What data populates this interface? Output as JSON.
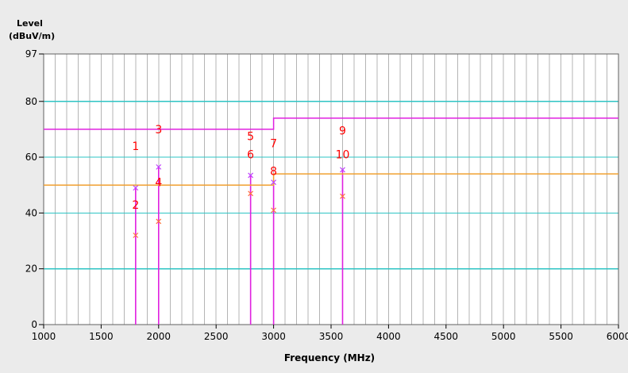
{
  "chart_data": {
    "type": "line",
    "ylabel": "Level",
    "yunit": "(dBuV/m)",
    "xlabel": "Frequency (MHz)",
    "xlim": [
      1000,
      6000
    ],
    "ylim": [
      0,
      97
    ],
    "x_ticks": [
      1000,
      1500,
      2000,
      2500,
      3000,
      3500,
      4000,
      4500,
      5000,
      5500,
      6000
    ],
    "x_tick_labels": [
      "1000",
      "1500",
      "2000",
      "2500",
      "3000",
      "3500",
      "4000",
      "4500",
      "5000",
      "5500",
      "6000"
    ],
    "y_ticks": [
      0,
      20,
      40,
      60,
      80,
      97
    ],
    "y_tick_labels": [
      "0",
      "20",
      "40",
      "60",
      "80",
      "97"
    ],
    "grid": true,
    "colors": {
      "plot_bg": "#ffffff",
      "minor_grid": "#b4b4b4",
      "major_grid": "#2ec4c4",
      "peak_limit": "#e020e0",
      "avg_limit": "#f0a030",
      "peak_marker": "#c040ff",
      "avg_marker": "#ff7040",
      "marker_label": "#ff0000",
      "vertical_line": "#e020e0"
    },
    "limit_lines": [
      {
        "points": [
          [
            1000,
            70
          ],
          [
            3000,
            70
          ],
          [
            3000,
            74
          ],
          [
            6000,
            74
          ]
        ],
        "color": "#e020e0"
      },
      {
        "points": [
          [
            1000,
            50
          ],
          [
            3000,
            50
          ],
          [
            3000,
            54
          ],
          [
            6000,
            54
          ]
        ],
        "color": "#f0a030"
      }
    ],
    "vertical_lines": [
      1800,
      2000,
      2800,
      3000,
      3600
    ],
    "peak_points": [
      [
        1800,
        49
      ],
      [
        2000,
        56.5
      ],
      [
        2800,
        53.5
      ],
      [
        3000,
        51
      ],
      [
        3600,
        55.5
      ]
    ],
    "avg_points": [
      [
        1800,
        32
      ],
      [
        2000,
        37
      ],
      [
        2800,
        47
      ],
      [
        3000,
        41
      ],
      [
        3600,
        46
      ]
    ],
    "markers": [
      {
        "label": "1",
        "x": 1800,
        "y": 64
      },
      {
        "label": "2",
        "x": 1800,
        "y": 43
      },
      {
        "label": "3",
        "x": 2000,
        "y": 70
      },
      {
        "label": "4",
        "x": 2000,
        "y": 51
      },
      {
        "label": "5",
        "x": 2800,
        "y": 67.5
      },
      {
        "label": "6",
        "x": 2800,
        "y": 61
      },
      {
        "label": "7",
        "x": 3000,
        "y": 65
      },
      {
        "label": "8",
        "x": 3000,
        "y": 55
      },
      {
        "label": "9",
        "x": 3600,
        "y": 69.5
      },
      {
        "label": "10",
        "x": 3600,
        "y": 61
      }
    ]
  }
}
